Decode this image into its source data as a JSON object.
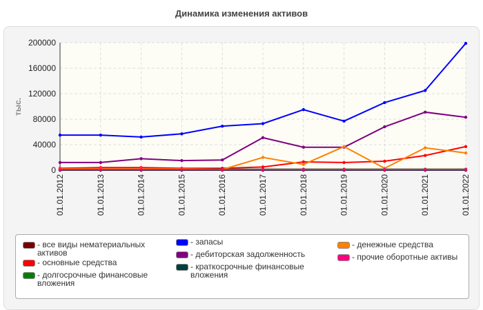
{
  "chart_data": {
    "type": "line",
    "title": "Динамика изменения активов",
    "ylabel": "тыс.",
    "xlabel": "",
    "ylim": [
      0,
      200000
    ],
    "yticks": [
      0,
      40000,
      80000,
      120000,
      160000,
      200000
    ],
    "grid": true,
    "legend_placement": "bottom",
    "categories": [
      "01.01.2012",
      "01.01.2013",
      "01.01.2014",
      "01.01.2015",
      "01.01.2016",
      "01.01.2017",
      "01.01.2018",
      "01.01.2019",
      "01.01.2020",
      "01.01.2021",
      "01.01.2022"
    ],
    "series": [
      {
        "name": "все виды нематериальных активов",
        "color": "#7a0000",
        "values": [
          0,
          0,
          0,
          0,
          0,
          0,
          0,
          0,
          0,
          0,
          0
        ]
      },
      {
        "name": "основные средства",
        "color": "#ff0000",
        "values": [
          3000,
          4000,
          4000,
          3000,
          3000,
          5000,
          13000,
          12000,
          14000,
          23000,
          37000
        ]
      },
      {
        "name": "долгосрочные финансовые вложения",
        "color": "#008000",
        "values": [
          1500,
          1500,
          1500,
          1500,
          1500,
          1500,
          1500,
          1500,
          1500,
          1500,
          1500
        ]
      },
      {
        "name": "запасы",
        "color": "#0000ff",
        "values": [
          55000,
          55000,
          52000,
          57000,
          69000,
          73000,
          95000,
          77000,
          106000,
          125000,
          199000
        ]
      },
      {
        "name": "дебиторская задолженность",
        "color": "#800080",
        "values": [
          12000,
          12000,
          18000,
          15000,
          16000,
          51000,
          36000,
          36000,
          68000,
          91000,
          83000
        ]
      },
      {
        "name": "краткосрочные финансовые вложения",
        "color": "#004040",
        "values": [
          0,
          0,
          0,
          0,
          0,
          0,
          0,
          0,
          0,
          0,
          0
        ]
      },
      {
        "name": "денежные средства",
        "color": "#ff8000",
        "values": [
          2000,
          2000,
          2000,
          2000,
          1000,
          20000,
          9000,
          37000,
          3000,
          35000,
          27000
        ]
      },
      {
        "name": "прочие оборотные активы",
        "color": "#ff0080",
        "values": [
          1000,
          1000,
          1000,
          1000,
          1000,
          1000,
          1000,
          1000,
          1000,
          1000,
          1000
        ]
      }
    ]
  }
}
